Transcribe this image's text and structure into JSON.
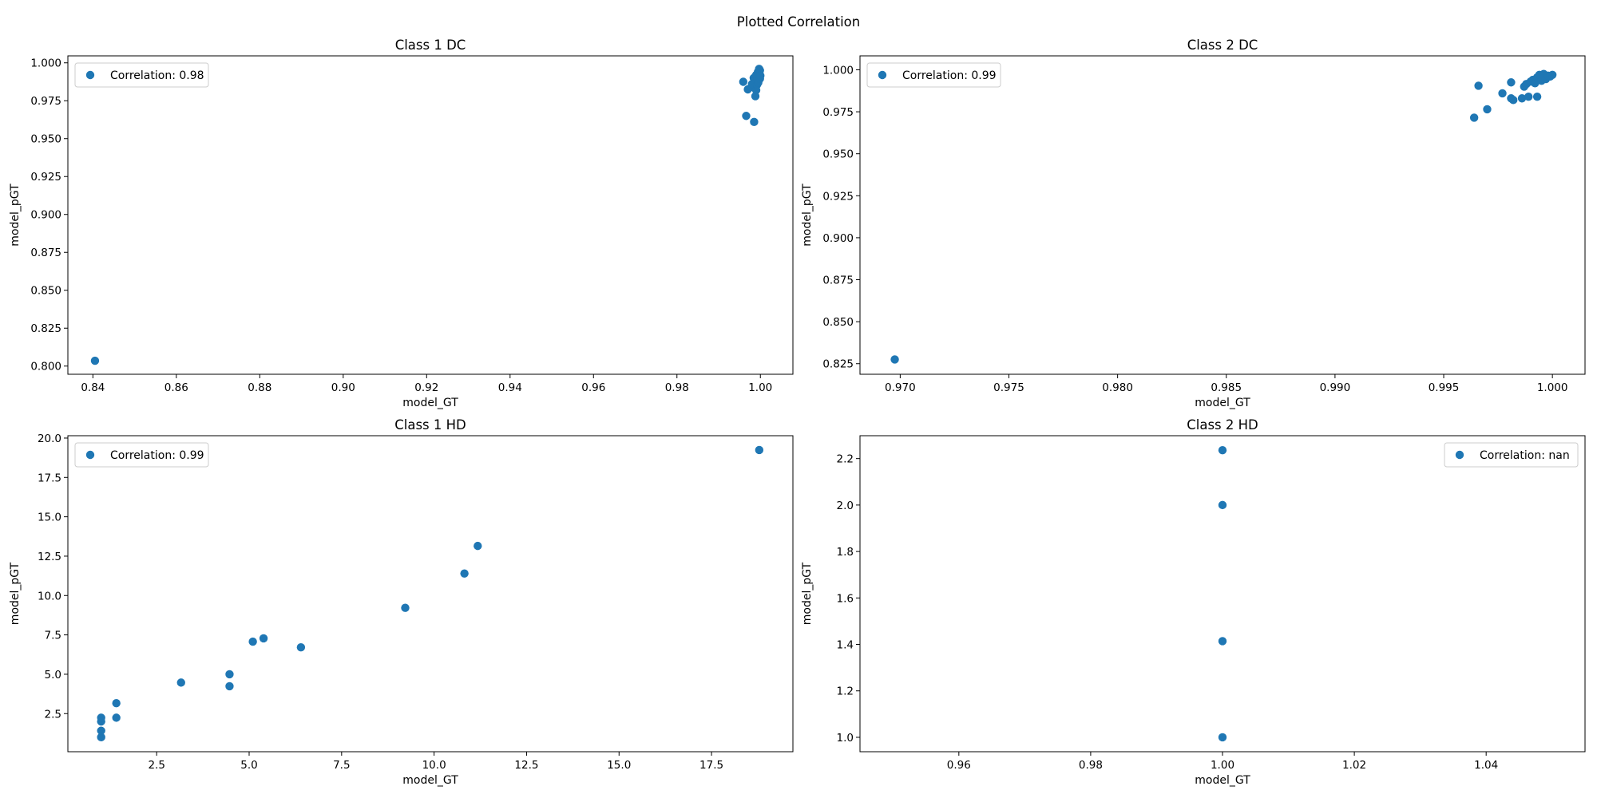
{
  "figure": {
    "suptitle": "Plotted Correlation"
  },
  "colors": {
    "marker": "#1f77b4",
    "axes": "#000000",
    "legend_border": "#cccccc"
  },
  "chart_data": [
    {
      "type": "scatter",
      "title": "Class 1 DC",
      "xlabel": "model_GT",
      "ylabel": "model_pGT",
      "xlim": [
        0.834,
        1.0078
      ],
      "ylim": [
        0.7946,
        1.0046
      ],
      "xticks": [
        0.84,
        0.86,
        0.88,
        0.9,
        0.92,
        0.94,
        0.96,
        0.98,
        1.0
      ],
      "xtick_labels": [
        "0.84",
        "0.86",
        "0.88",
        "0.90",
        "0.92",
        "0.94",
        "0.96",
        "0.98",
        "1.00"
      ],
      "yticks": [
        0.8,
        0.825,
        0.85,
        0.875,
        0.9,
        0.925,
        0.95,
        0.975,
        1.0
      ],
      "ytick_labels": [
        "0.800",
        "0.825",
        "0.850",
        "0.875",
        "0.900",
        "0.925",
        "0.950",
        "0.975",
        "1.000"
      ],
      "legend": {
        "label": "Correlation: 0.98",
        "placement": "top-left"
      },
      "points": [
        [
          0.8405,
          0.8035
        ],
        [
          0.9959,
          0.9875
        ],
        [
          0.9966,
          0.965
        ],
        [
          0.997,
          0.9825
        ],
        [
          0.9978,
          0.984
        ],
        [
          0.998,
          0.986
        ],
        [
          0.9984,
          0.99
        ],
        [
          0.9985,
          0.961
        ],
        [
          0.9986,
          0.988
        ],
        [
          0.9988,
          0.978
        ],
        [
          0.999,
          0.982
        ],
        [
          0.999,
          0.992
        ],
        [
          0.9992,
          0.9855
        ],
        [
          0.9993,
          0.989
        ],
        [
          0.9994,
          0.994
        ],
        [
          0.9995,
          0.987
        ],
        [
          0.9996,
          0.991
        ],
        [
          0.9997,
          0.996
        ],
        [
          0.9998,
          0.993
        ],
        [
          0.9999,
          0.995
        ],
        [
          0.9999,
          0.9895
        ],
        [
          1.0,
          0.9915
        ]
      ]
    },
    {
      "type": "scatter",
      "title": "Class 2 DC",
      "xlabel": "model_GT",
      "ylabel": "model_pGT",
      "xlim": [
        0.96815,
        1.0015
      ],
      "ylim": [
        0.8187,
        1.0083
      ],
      "xticks": [
        0.97,
        0.975,
        0.98,
        0.985,
        0.99,
        0.995,
        1.0
      ],
      "xtick_labels": [
        "0.970",
        "0.975",
        "0.980",
        "0.985",
        "0.990",
        "0.995",
        "1.000"
      ],
      "yticks": [
        0.825,
        0.85,
        0.875,
        0.9,
        0.925,
        0.95,
        0.975,
        1.0
      ],
      "ytick_labels": [
        "0.825",
        "0.850",
        "0.875",
        "0.900",
        "0.925",
        "0.950",
        "0.975",
        "1.000"
      ],
      "legend": {
        "label": "Correlation: 0.99",
        "placement": "top-left"
      },
      "points": [
        [
          0.96975,
          0.8275
        ],
        [
          0.9964,
          0.9715
        ],
        [
          0.9966,
          0.9905
        ],
        [
          0.997,
          0.9765
        ],
        [
          0.9977,
          0.986
        ],
        [
          0.9981,
          0.983
        ],
        [
          0.9981,
          0.9925
        ],
        [
          0.9982,
          0.982
        ],
        [
          0.9986,
          0.983
        ],
        [
          0.9987,
          0.99
        ],
        [
          0.9988,
          0.9915
        ],
        [
          0.9989,
          0.984
        ],
        [
          0.999,
          0.993
        ],
        [
          0.9991,
          0.994
        ],
        [
          0.9992,
          0.992
        ],
        [
          0.9993,
          0.9955
        ],
        [
          0.9993,
          0.984
        ],
        [
          0.9994,
          0.997
        ],
        [
          0.9995,
          0.9935
        ],
        [
          0.9996,
          0.9975
        ],
        [
          0.9997,
          0.9945
        ],
        [
          0.9998,
          0.9965
        ],
        [
          0.9999,
          0.996
        ],
        [
          1.0,
          0.997
        ]
      ]
    },
    {
      "type": "scatter",
      "title": "Class 1 HD",
      "xlabel": "model_GT",
      "ylabel": "model_pGT",
      "xlim": [
        0.1,
        19.7
      ],
      "ylim": [
        0.08,
        20.15
      ],
      "xticks": [
        2.5,
        5.0,
        7.5,
        10.0,
        12.5,
        15.0,
        17.5
      ],
      "xtick_labels": [
        "2.5",
        "5.0",
        "7.5",
        "10.0",
        "12.5",
        "15.0",
        "17.5"
      ],
      "yticks": [
        2.5,
        5.0,
        7.5,
        10.0,
        12.5,
        15.0,
        17.5,
        20.0
      ],
      "ytick_labels": [
        "2.5",
        "5.0",
        "7.5",
        "10.0",
        "12.5",
        "15.0",
        "17.5",
        "20.0"
      ],
      "legend": {
        "label": "Correlation: 0.99",
        "placement": "top-left"
      },
      "points": [
        [
          1.0,
          1.0
        ],
        [
          1.0,
          1.41
        ],
        [
          1.0,
          2.0
        ],
        [
          1.0,
          2.24
        ],
        [
          1.41,
          2.24
        ],
        [
          1.41,
          3.16
        ],
        [
          3.16,
          4.47
        ],
        [
          4.47,
          4.24
        ],
        [
          4.47,
          5.0
        ],
        [
          5.1,
          7.07
        ],
        [
          5.39,
          7.28
        ],
        [
          6.4,
          6.71
        ],
        [
          9.22,
          9.22
        ],
        [
          10.82,
          11.4
        ],
        [
          11.18,
          13.15
        ],
        [
          18.79,
          19.24
        ]
      ]
    },
    {
      "type": "scatter",
      "title": "Class 2 HD",
      "xlabel": "model_GT",
      "ylabel": "model_pGT",
      "xlim": [
        0.945,
        1.055
      ],
      "ylim": [
        0.938,
        2.2985
      ],
      "xticks": [
        0.96,
        0.98,
        1.0,
        1.02,
        1.04
      ],
      "xtick_labels": [
        "0.96",
        "0.98",
        "1.00",
        "1.02",
        "1.04"
      ],
      "yticks": [
        1.0,
        1.2,
        1.4,
        1.6,
        1.8,
        2.0,
        2.2
      ],
      "ytick_labels": [
        "1.0",
        "1.2",
        "1.4",
        "1.6",
        "1.8",
        "2.0",
        "2.2"
      ],
      "legend": {
        "label": "Correlation: nan",
        "placement": "top-right"
      },
      "points": [
        [
          1.0,
          1.0
        ],
        [
          1.0,
          1.414
        ],
        [
          1.0,
          2.0
        ],
        [
          1.0,
          2.236
        ]
      ]
    }
  ]
}
